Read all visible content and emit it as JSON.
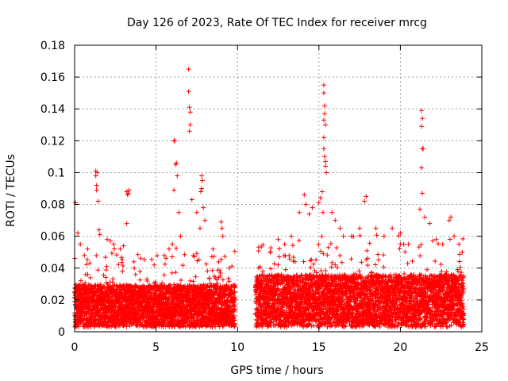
{
  "chart_data": {
    "type": "scatter",
    "title": "Day 126 of 2023, Rate Of TEC Index for receiver mrcg",
    "xlabel": "GPS time / hours",
    "ylabel": "ROTI / TECUs",
    "xlim": [
      0,
      25
    ],
    "ylim": [
      0,
      0.18
    ],
    "grid": true,
    "marker": "+",
    "x_ticks": [
      0,
      5,
      10,
      15,
      20,
      25
    ],
    "x_tick_labels": [
      "0",
      "5",
      "10",
      "15",
      "20",
      "25"
    ],
    "y_ticks": [
      0,
      0.02,
      0.04,
      0.06,
      0.08,
      0.1,
      0.12,
      0.14,
      0.16,
      0.18
    ],
    "y_tick_labels": [
      "0",
      "0.02",
      "0.04",
      "0.06",
      "0.08",
      "0.1",
      "0.12",
      "0.14",
      "0.16",
      "0.18"
    ],
    "colors": {
      "series": "#ff0000",
      "grid": "#a0a0a0",
      "axis": "#000000"
    },
    "series": [
      {
        "name": "ROTI",
        "dense_segments": [
          {
            "x_range": [
              0.0,
              9.85
            ],
            "base": 0.018,
            "spread": 0.014
          },
          {
            "x_range": [
              11.1,
              23.9
            ],
            "base": 0.022,
            "spread": 0.018
          }
        ],
        "points": [
          [
            0.05,
            0.081
          ],
          [
            0.2,
            0.062
          ],
          [
            0.35,
            0.055
          ],
          [
            0.6,
            0.048
          ],
          [
            0.8,
            0.052
          ],
          [
            1.3,
            0.101
          ],
          [
            1.3,
            0.098
          ],
          [
            1.35,
            0.092
          ],
          [
            1.35,
            0.089
          ],
          [
            1.4,
            0.1
          ],
          [
            1.45,
            0.082
          ],
          [
            1.5,
            0.064
          ],
          [
            1.55,
            0.061
          ],
          [
            2.0,
            0.058
          ],
          [
            2.2,
            0.057
          ],
          [
            2.4,
            0.055
          ],
          [
            2.8,
            0.052
          ],
          [
            3.0,
            0.054
          ],
          [
            3.2,
            0.088
          ],
          [
            3.25,
            0.086
          ],
          [
            3.3,
            0.087
          ],
          [
            3.35,
            0.089
          ],
          [
            3.2,
            0.068
          ],
          [
            5.5,
            0.048
          ],
          [
            5.8,
            0.052
          ],
          [
            6.0,
            0.055
          ],
          [
            6.1,
            0.12
          ],
          [
            6.15,
            0.12
          ],
          [
            6.2,
            0.105
          ],
          [
            6.25,
            0.106
          ],
          [
            6.3,
            0.098
          ],
          [
            6.1,
            0.089
          ],
          [
            6.4,
            0.075
          ],
          [
            6.5,
            0.06
          ],
          [
            7.0,
            0.165
          ],
          [
            7.0,
            0.151
          ],
          [
            7.05,
            0.141
          ],
          [
            7.1,
            0.138
          ],
          [
            7.1,
            0.13
          ],
          [
            7.05,
            0.126
          ],
          [
            7.2,
            0.083
          ],
          [
            7.5,
            0.075
          ],
          [
            7.7,
            0.065
          ],
          [
            7.8,
            0.098
          ],
          [
            7.85,
            0.095
          ],
          [
            7.8,
            0.09
          ],
          [
            7.75,
            0.088
          ],
          [
            7.9,
            0.078
          ],
          [
            8.0,
            0.07
          ],
          [
            8.5,
            0.052
          ],
          [
            9.0,
            0.069
          ],
          [
            9.05,
            0.065
          ],
          [
            9.1,
            0.06
          ],
          [
            9.5,
            0.04
          ],
          [
            9.8,
            0.02
          ],
          [
            11.3,
            0.04
          ],
          [
            11.5,
            0.035
          ],
          [
            12.0,
            0.05
          ],
          [
            12.5,
            0.058
          ],
          [
            12.9,
            0.055
          ],
          [
            13.3,
            0.06
          ],
          [
            13.8,
            0.075
          ],
          [
            14.1,
            0.086
          ],
          [
            14.2,
            0.08
          ],
          [
            14.4,
            0.074
          ],
          [
            14.6,
            0.078
          ],
          [
            15.0,
            0.081
          ],
          [
            15.1,
            0.084
          ],
          [
            15.2,
            0.088
          ],
          [
            15.25,
            0.075
          ],
          [
            15.3,
            0.155
          ],
          [
            15.3,
            0.15
          ],
          [
            15.35,
            0.142
          ],
          [
            15.35,
            0.137
          ],
          [
            15.3,
            0.133
          ],
          [
            15.4,
            0.13
          ],
          [
            15.3,
            0.122
          ],
          [
            15.3,
            0.115
          ],
          [
            15.35,
            0.11
          ],
          [
            15.4,
            0.107
          ],
          [
            15.4,
            0.104
          ],
          [
            15.45,
            0.1
          ],
          [
            15.8,
            0.075
          ],
          [
            16.0,
            0.07
          ],
          [
            16.3,
            0.065
          ],
          [
            16.5,
            0.06
          ],
          [
            17.0,
            0.06
          ],
          [
            17.5,
            0.065
          ],
          [
            17.8,
            0.082
          ],
          [
            17.9,
            0.085
          ],
          [
            18.5,
            0.065
          ],
          [
            19.0,
            0.06
          ],
          [
            19.5,
            0.065
          ],
          [
            20.0,
            0.062
          ],
          [
            20.5,
            0.055
          ],
          [
            21.3,
            0.139
          ],
          [
            21.35,
            0.134
          ],
          [
            21.3,
            0.129
          ],
          [
            21.4,
            0.115
          ],
          [
            21.35,
            0.115
          ],
          [
            21.3,
            0.103
          ],
          [
            21.35,
            0.087
          ],
          [
            21.2,
            0.077
          ],
          [
            21.5,
            0.072
          ],
          [
            21.8,
            0.068
          ],
          [
            22.2,
            0.058
          ],
          [
            22.6,
            0.055
          ],
          [
            23.0,
            0.07
          ],
          [
            23.1,
            0.072
          ],
          [
            23.3,
            0.06
          ],
          [
            23.6,
            0.055
          ],
          [
            23.8,
            0.05
          ]
        ]
      }
    ]
  }
}
